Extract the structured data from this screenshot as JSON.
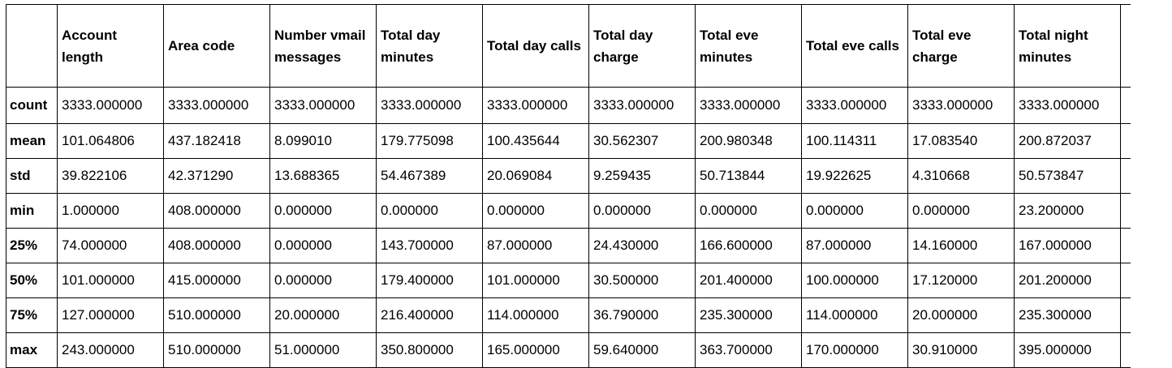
{
  "table": {
    "columns": [
      "Account length",
      "Area code",
      "Number vmail messages",
      "Total day minutes",
      "Total day calls",
      "Total day charge",
      "Total eve minutes",
      "Total eve calls",
      "Total eve charge",
      "Total night minutes"
    ],
    "rows": [
      {
        "label": "count",
        "values": [
          "3333.000000",
          "3333.000000",
          "3333.000000",
          "3333.000000",
          "3333.000000",
          "3333.000000",
          "3333.000000",
          "3333.000000",
          "3333.000000",
          "3333.000000"
        ]
      },
      {
        "label": "mean",
        "values": [
          "101.064806",
          "437.182418",
          "8.099010",
          "179.775098",
          "100.435644",
          "30.562307",
          "200.980348",
          "100.114311",
          "17.083540",
          "200.872037"
        ]
      },
      {
        "label": "std",
        "values": [
          "39.822106",
          "42.371290",
          "13.688365",
          "54.467389",
          "20.069084",
          "9.259435",
          "50.713844",
          "19.922625",
          "4.310668",
          "50.573847"
        ]
      },
      {
        "label": "min",
        "values": [
          "1.000000",
          "408.000000",
          "0.000000",
          "0.000000",
          "0.000000",
          "0.000000",
          "0.000000",
          "0.000000",
          "0.000000",
          "23.200000"
        ]
      },
      {
        "label": "25%",
        "values": [
          "74.000000",
          "408.000000",
          "0.000000",
          "143.700000",
          "87.000000",
          "24.430000",
          "166.600000",
          "87.000000",
          "14.160000",
          "167.000000"
        ]
      },
      {
        "label": "50%",
        "values": [
          "101.000000",
          "415.000000",
          "0.000000",
          "179.400000",
          "101.000000",
          "30.500000",
          "201.400000",
          "100.000000",
          "17.120000",
          "201.200000"
        ]
      },
      {
        "label": "75%",
        "values": [
          "127.000000",
          "510.000000",
          "20.000000",
          "216.400000",
          "114.000000",
          "36.790000",
          "235.300000",
          "114.000000",
          "20.000000",
          "235.300000"
        ]
      },
      {
        "label": "max",
        "values": [
          "243.000000",
          "510.000000",
          "51.000000",
          "350.800000",
          "165.000000",
          "59.640000",
          "363.700000",
          "170.000000",
          "30.910000",
          "395.000000"
        ]
      }
    ]
  }
}
